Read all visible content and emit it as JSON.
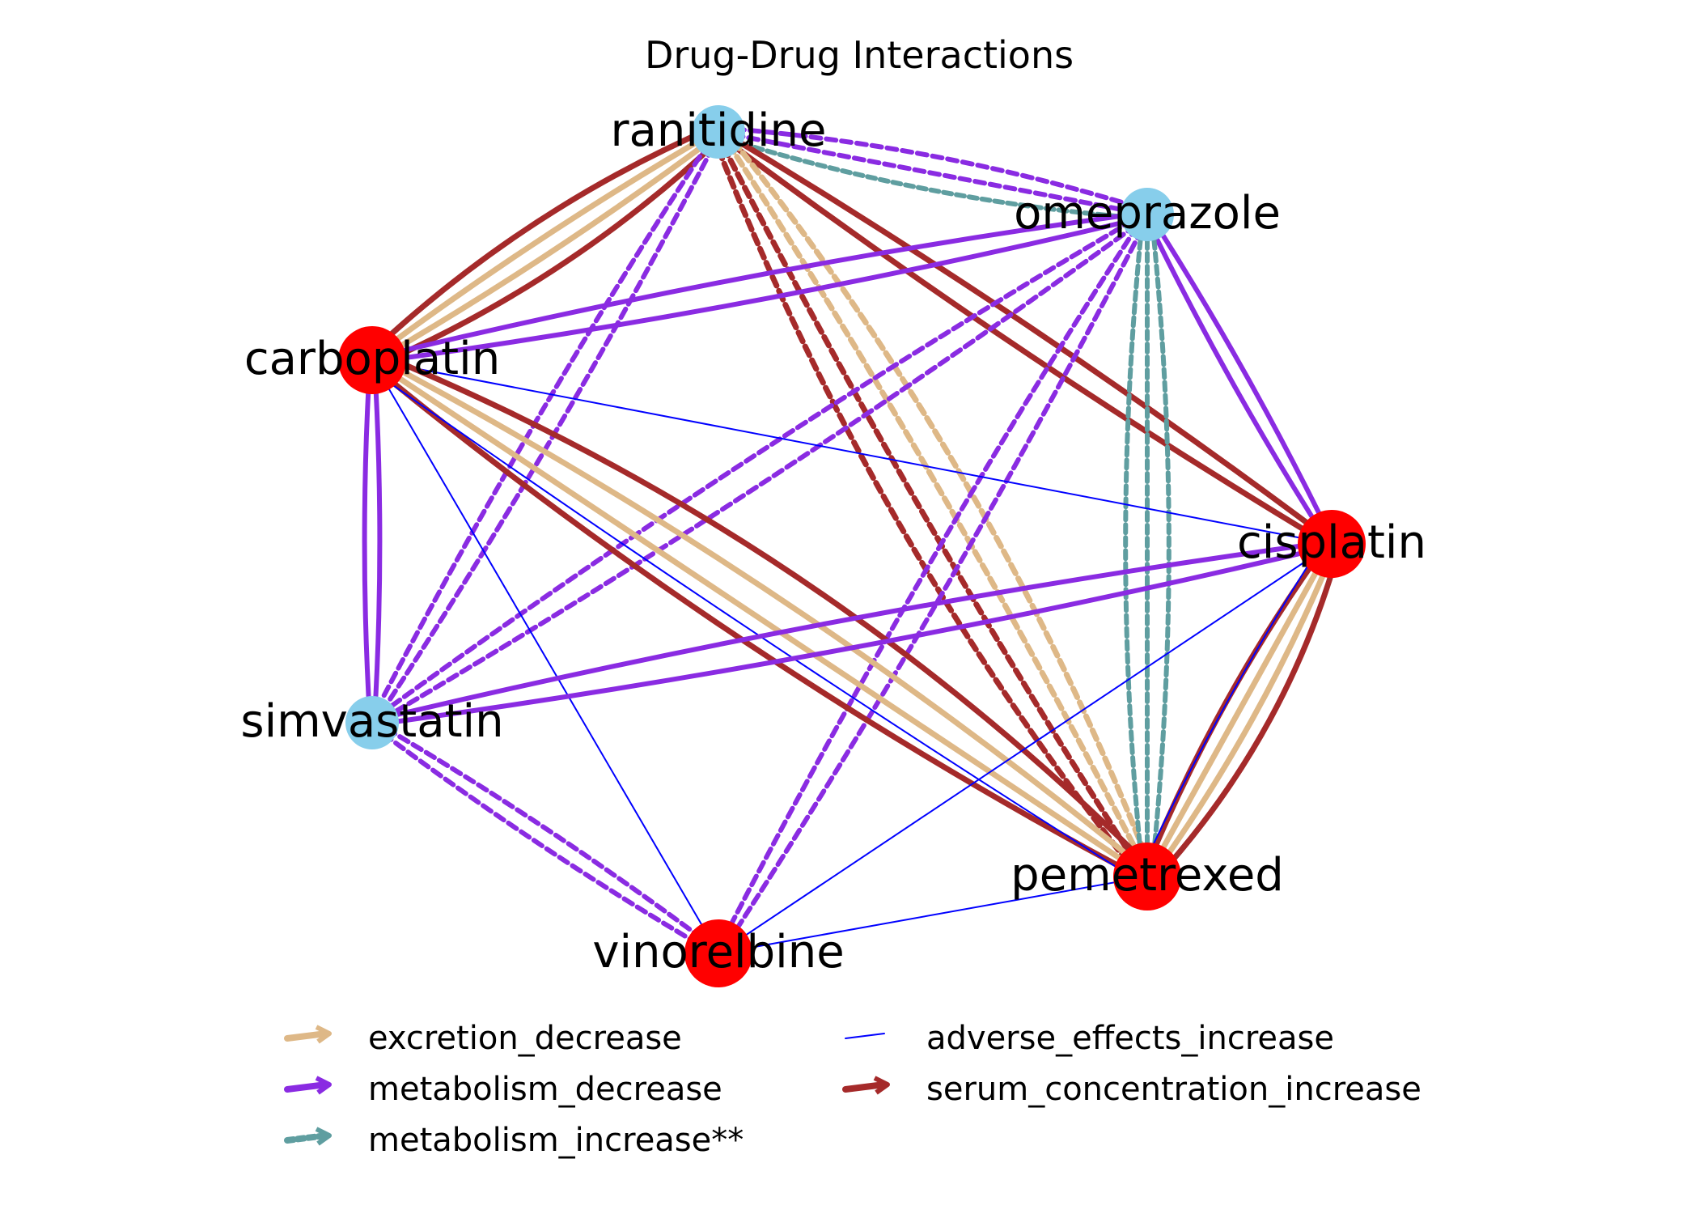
{
  "title": "Drug-Drug Interactions",
  "colors": {
    "excretion_decrease": "#deb887",
    "metabolism_decrease": "#8a2be2",
    "metabolism_increase": "#5f9ea0",
    "adverse_effects_increase": "#0000ff",
    "serum_concentration_increase": "#a52a2a",
    "node_red": "#ff0000",
    "node_blue": "#87ceeb"
  },
  "nodes": [
    {
      "id": "ranitidine",
      "label": "ranitidine",
      "color": "node_blue"
    },
    {
      "id": "omeprazole",
      "label": "omeprazole",
      "color": "node_blue"
    },
    {
      "id": "carboplatin",
      "label": "carboplatin",
      "color": "node_red"
    },
    {
      "id": "cisplatin",
      "label": "cisplatin",
      "color": "node_red"
    },
    {
      "id": "simvastatin",
      "label": "simvastatin",
      "color": "node_blue"
    },
    {
      "id": "pemetrexed",
      "label": "pemetrexed",
      "color": "node_red"
    },
    {
      "id": "vinorelbine",
      "label": "vinorelbine",
      "color": "node_red"
    }
  ],
  "edges": [
    {
      "source": "ranitidine",
      "target": "carboplatin",
      "type": "serum_concentration_increase"
    },
    {
      "source": "ranitidine",
      "target": "carboplatin",
      "type": "excretion_decrease"
    },
    {
      "source": "ranitidine",
      "target": "carboplatin",
      "type": "excretion_decrease"
    },
    {
      "source": "ranitidine",
      "target": "carboplatin",
      "type": "serum_concentration_increase"
    },
    {
      "source": "ranitidine",
      "target": "omeprazole",
      "type": "metabolism_decrease",
      "dashed": true
    },
    {
      "source": "ranitidine",
      "target": "omeprazole",
      "type": "metabolism_decrease",
      "dashed": true
    },
    {
      "source": "ranitidine",
      "target": "omeprazole",
      "type": "metabolism_increase",
      "dashed": true
    },
    {
      "source": "ranitidine",
      "target": "cisplatin",
      "type": "serum_concentration_increase"
    },
    {
      "source": "ranitidine",
      "target": "cisplatin",
      "type": "serum_concentration_increase"
    },
    {
      "source": "ranitidine",
      "target": "simvastatin",
      "type": "metabolism_decrease",
      "dashed": true
    },
    {
      "source": "ranitidine",
      "target": "simvastatin",
      "type": "metabolism_decrease",
      "dashed": true
    },
    {
      "source": "ranitidine",
      "target": "pemetrexed",
      "type": "excretion_decrease",
      "dashed": true
    },
    {
      "source": "ranitidine",
      "target": "pemetrexed",
      "type": "excretion_decrease",
      "dashed": true
    },
    {
      "source": "ranitidine",
      "target": "pemetrexed",
      "type": "serum_concentration_increase",
      "dashed": true
    },
    {
      "source": "ranitidine",
      "target": "pemetrexed",
      "type": "serum_concentration_increase",
      "dashed": true
    },
    {
      "source": "omeprazole",
      "target": "carboplatin",
      "type": "metabolism_decrease"
    },
    {
      "source": "omeprazole",
      "target": "carboplatin",
      "type": "metabolism_decrease"
    },
    {
      "source": "omeprazole",
      "target": "cisplatin",
      "type": "metabolism_decrease"
    },
    {
      "source": "omeprazole",
      "target": "cisplatin",
      "type": "metabolism_decrease"
    },
    {
      "source": "omeprazole",
      "target": "simvastatin",
      "type": "metabolism_decrease",
      "dashed": true
    },
    {
      "source": "omeprazole",
      "target": "simvastatin",
      "type": "metabolism_decrease",
      "dashed": true
    },
    {
      "source": "omeprazole",
      "target": "vinorelbine",
      "type": "metabolism_decrease",
      "dashed": true
    },
    {
      "source": "omeprazole",
      "target": "vinorelbine",
      "type": "metabolism_decrease",
      "dashed": true
    },
    {
      "source": "omeprazole",
      "target": "pemetrexed",
      "type": "metabolism_increase",
      "dashed": true
    },
    {
      "source": "omeprazole",
      "target": "pemetrexed",
      "type": "metabolism_increase",
      "dashed": true
    },
    {
      "source": "omeprazole",
      "target": "pemetrexed",
      "type": "metabolism_increase",
      "dashed": true
    },
    {
      "source": "carboplatin",
      "target": "cisplatin",
      "type": "adverse_effects_increase"
    },
    {
      "source": "carboplatin",
      "target": "simvastatin",
      "type": "metabolism_decrease"
    },
    {
      "source": "carboplatin",
      "target": "simvastatin",
      "type": "metabolism_decrease"
    },
    {
      "source": "carboplatin",
      "target": "pemetrexed",
      "type": "serum_concentration_increase"
    },
    {
      "source": "carboplatin",
      "target": "pemetrexed",
      "type": "excretion_decrease"
    },
    {
      "source": "carboplatin",
      "target": "pemetrexed",
      "type": "excretion_decrease"
    },
    {
      "source": "carboplatin",
      "target": "pemetrexed",
      "type": "serum_concentration_increase"
    },
    {
      "source": "carboplatin",
      "target": "pemetrexed",
      "type": "adverse_effects_increase"
    },
    {
      "source": "carboplatin",
      "target": "vinorelbine",
      "type": "adverse_effects_increase"
    },
    {
      "source": "simvastatin",
      "target": "cisplatin",
      "type": "metabolism_decrease"
    },
    {
      "source": "simvastatin",
      "target": "cisplatin",
      "type": "metabolism_decrease"
    },
    {
      "source": "simvastatin",
      "target": "vinorelbine",
      "type": "metabolism_decrease",
      "dashed": true
    },
    {
      "source": "simvastatin",
      "target": "vinorelbine",
      "type": "metabolism_decrease",
      "dashed": true
    },
    {
      "source": "cisplatin",
      "target": "pemetrexed",
      "type": "serum_concentration_increase"
    },
    {
      "source": "cisplatin",
      "target": "pemetrexed",
      "type": "excretion_decrease"
    },
    {
      "source": "cisplatin",
      "target": "pemetrexed",
      "type": "excretion_decrease"
    },
    {
      "source": "cisplatin",
      "target": "pemetrexed",
      "type": "serum_concentration_increase"
    },
    {
      "source": "cisplatin",
      "target": "pemetrexed",
      "type": "adverse_effects_increase"
    },
    {
      "source": "cisplatin",
      "target": "vinorelbine",
      "type": "adverse_effects_increase"
    },
    {
      "source": "pemetrexed",
      "target": "vinorelbine",
      "type": "adverse_effects_increase"
    }
  ],
  "legend": [
    {
      "label": "excretion_decrease",
      "type": "excretion_decrease"
    },
    {
      "label": "adverse_effects_increase",
      "type": "adverse_effects_increase"
    },
    {
      "label": "metabolism_decrease",
      "type": "metabolism_decrease"
    },
    {
      "label": "serum_concentration_increase",
      "type": "serum_concentration_increase"
    },
    {
      "label": "metabolism_increase**",
      "type": "metabolism_increase"
    }
  ]
}
